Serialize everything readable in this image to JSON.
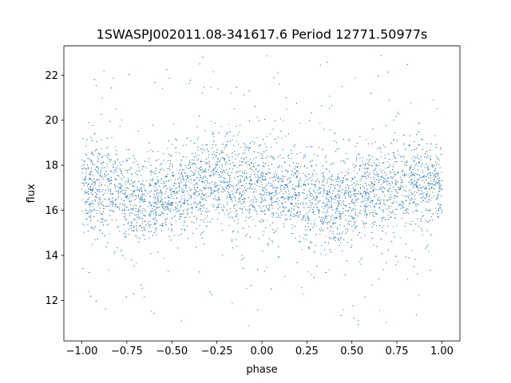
{
  "chart_data": {
    "type": "scatter",
    "title": "1SWASPJ002011.08-341617.6 Period 12771.50977s",
    "xlabel": "phase",
    "ylabel": "flux",
    "xlim": [
      -1.1,
      1.1
    ],
    "ylim": [
      10.2,
      23.3
    ],
    "x_ticks": [
      -1.0,
      -0.75,
      -0.5,
      -0.25,
      0.0,
      0.25,
      0.5,
      0.75,
      1.0
    ],
    "x_tick_labels": [
      "−1.00",
      "−0.75",
      "−0.50",
      "−0.25",
      "0.00",
      "0.25",
      "0.50",
      "0.75",
      "1.00"
    ],
    "y_ticks": [
      12,
      14,
      16,
      18,
      20,
      22
    ],
    "y_tick_labels": [
      "12",
      "14",
      "16",
      "18",
      "20",
      "22"
    ],
    "grid": false,
    "legend": "none",
    "series": [
      {
        "color": "#1f77b4",
        "x_range": [
          -1.0,
          1.0
        ],
        "points": [
          [
            -1.0,
            17.2
          ],
          [
            -0.95,
            17.1
          ],
          [
            -0.9,
            17.0
          ],
          [
            -0.85,
            16.9
          ],
          [
            -0.8,
            16.8
          ],
          [
            -0.75,
            16.7
          ],
          [
            -0.7,
            16.6
          ],
          [
            -0.65,
            16.5
          ],
          [
            -0.6,
            16.45
          ],
          [
            -0.55,
            16.5
          ],
          [
            -0.5,
            16.7
          ],
          [
            -0.45,
            16.9
          ],
          [
            -0.4,
            17.1
          ],
          [
            -0.35,
            17.2
          ],
          [
            -0.3,
            17.3
          ],
          [
            -0.25,
            17.3
          ],
          [
            -0.2,
            17.25
          ],
          [
            -0.15,
            17.2
          ],
          [
            -0.1,
            17.1
          ],
          [
            -0.05,
            17.0
          ],
          [
            0.0,
            16.9
          ],
          [
            0.05,
            16.9
          ],
          [
            0.1,
            16.9
          ],
          [
            0.15,
            16.8
          ],
          [
            0.2,
            16.7
          ],
          [
            0.25,
            16.6
          ],
          [
            0.3,
            16.5
          ],
          [
            0.35,
            16.45
          ],
          [
            0.4,
            16.45
          ],
          [
            0.45,
            16.5
          ],
          [
            0.5,
            16.6
          ],
          [
            0.55,
            16.7
          ],
          [
            0.6,
            16.8
          ],
          [
            0.65,
            16.9
          ],
          [
            0.7,
            17.0
          ],
          [
            0.75,
            17.1
          ],
          [
            0.8,
            17.15
          ],
          [
            0.85,
            17.2
          ],
          [
            0.9,
            17.2
          ],
          [
            0.95,
            17.2
          ],
          [
            1.0,
            17.2
          ]
        ]
      }
    ]
  }
}
